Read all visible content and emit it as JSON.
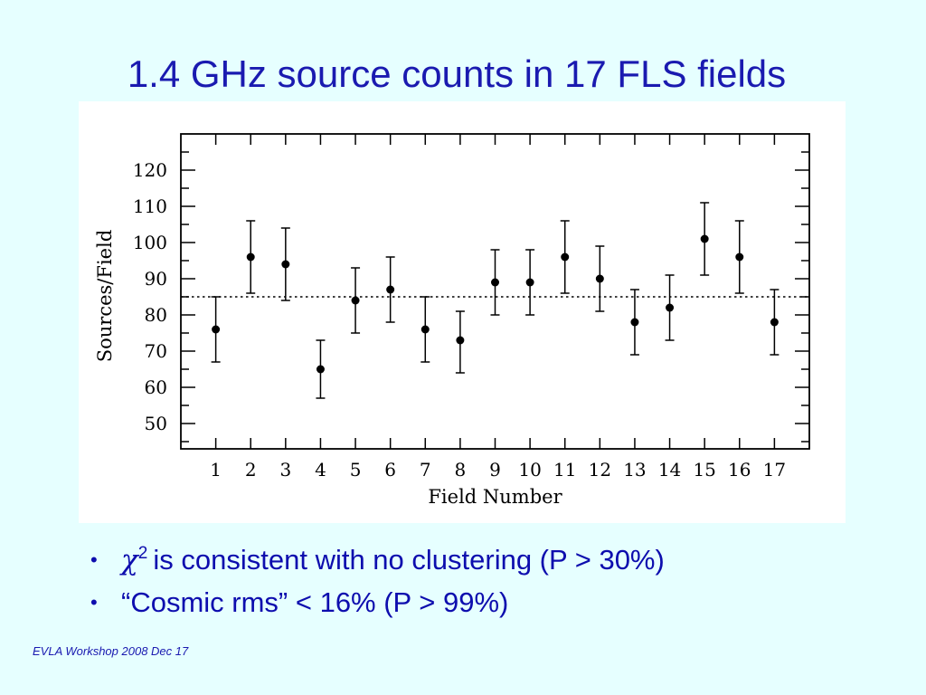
{
  "slide": {
    "title": "1.4 GHz source counts in 17 FLS fields",
    "footer": "EVLA Workshop 2008 Dec 17",
    "bullets": [
      {
        "symbol": "χ",
        "superscript": "2",
        "text": "is consistent with no clustering (P > 30%)"
      },
      {
        "symbol": "",
        "superscript": "",
        "text": "“Cosmic rms” < 16% (P > 99%)"
      }
    ]
  },
  "chart_data": {
    "type": "scatter",
    "title": "",
    "xlabel": "Field Number",
    "ylabel": "Sources/Field",
    "xlim": [
      0,
      18
    ],
    "ylim": [
      43,
      130
    ],
    "x_ticks": [
      1,
      2,
      3,
      4,
      5,
      6,
      7,
      8,
      9,
      10,
      11,
      12,
      13,
      14,
      15,
      16,
      17
    ],
    "y_ticks": [
      50,
      60,
      70,
      80,
      90,
      100,
      110,
      120
    ],
    "reference_line": 85,
    "grid": false,
    "series": [
      {
        "x": [
          1,
          2,
          3,
          4,
          5,
          6,
          7,
          8,
          9,
          10,
          11,
          12,
          13,
          14,
          15,
          16,
          17
        ],
        "y": [
          76,
          96,
          94,
          65,
          84,
          87,
          76,
          73,
          89,
          89,
          96,
          90,
          78,
          82,
          101,
          96,
          78
        ],
        "err_low": [
          67,
          86,
          84,
          57,
          75,
          78,
          67,
          64,
          80,
          80,
          86,
          81,
          69,
          73,
          91,
          86,
          69
        ],
        "err_high": [
          85,
          106,
          104,
          73,
          93,
          96,
          85,
          81,
          98,
          98,
          106,
          99,
          87,
          91,
          111,
          106,
          87
        ]
      }
    ]
  }
}
